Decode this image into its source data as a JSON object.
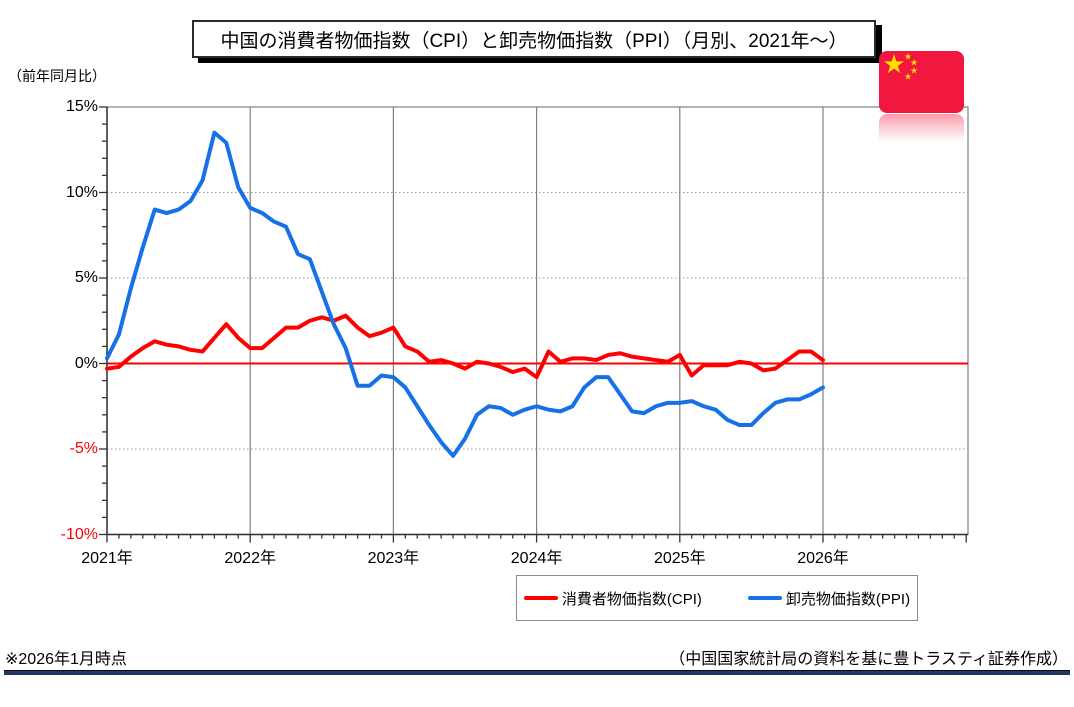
{
  "title": "中国の消費者物価指数（CPI）と卸売物価指数（PPI）（月別、2021年～）",
  "y_axis_unit_label": "（前年同月比）",
  "legend": [
    {
      "label": "消費者物価指数(CPI)",
      "color": "#FF0000"
    },
    {
      "label": "卸売物価指数(PPI)",
      "color": "#1670E8"
    }
  ],
  "footer": {
    "left_note": "※2026年1月時点",
    "right_source": "（中国国家統計局の資料を基に豊トラスティ証券作成）"
  },
  "flag": {
    "name": "china-flag",
    "field_color": "#F1173F",
    "star_color": "#FFDE00",
    "big_star": "★",
    "small_star": "★"
  },
  "chart_data": {
    "type": "line",
    "title": "中国の消費者物価指数（CPI）と卸売物価指数（PPI）（月別、2021年～）",
    "xlabel": "",
    "ylabel": "（前年同月比）",
    "x_range": [
      "2021-01",
      "2026-01"
    ],
    "x_tick_labels": [
      "2021年",
      "2022年",
      "2023年",
      "2024年",
      "2025年",
      "2026年"
    ],
    "y_tick_labels": [
      "15%",
      "10%",
      "5%",
      "0%",
      "-5%",
      "-10%"
    ],
    "y_tick_colors": [
      "#000000",
      "#000000",
      "#000000",
      "#000000",
      "#FF0000",
      "#FF0000"
    ],
    "ylim": [
      -10,
      15
    ],
    "grid": "dotted horizontal at 10,5,-5; solid gray vertical at year starts",
    "zero_line_color": "#FF0000",
    "legend_position": "bottom",
    "series": [
      {
        "name": "消費者物価指数(CPI)",
        "color": "#FF0000",
        "values": [
          -0.3,
          -0.2,
          0.4,
          0.9,
          1.3,
          1.1,
          1.0,
          0.8,
          0.7,
          1.5,
          2.3,
          1.5,
          0.9,
          0.9,
          1.5,
          2.1,
          2.1,
          2.5,
          2.7,
          2.5,
          2.8,
          2.1,
          1.6,
          1.8,
          2.1,
          1.0,
          0.7,
          0.1,
          0.2,
          0.0,
          -0.3,
          0.1,
          0.0,
          -0.2,
          -0.5,
          -0.3,
          -0.8,
          0.7,
          0.1,
          0.3,
          0.3,
          0.2,
          0.5,
          0.6,
          0.4,
          0.3,
          0.2,
          0.1,
          0.5,
          -0.7,
          -0.1,
          -0.1,
          -0.1,
          0.1,
          0.0,
          -0.4,
          -0.3,
          0.2,
          0.7,
          0.7,
          0.2
        ]
      },
      {
        "name": "卸売物価指数(PPI)",
        "color": "#1670E8",
        "values": [
          0.3,
          1.7,
          4.4,
          6.8,
          9.0,
          8.8,
          9.0,
          9.5,
          10.7,
          13.5,
          12.9,
          10.3,
          9.1,
          8.8,
          8.3,
          8.0,
          6.4,
          6.1,
          4.2,
          2.3,
          0.9,
          -1.3,
          -1.3,
          -0.7,
          -0.8,
          -1.4,
          -2.5,
          -3.6,
          -4.6,
          -5.4,
          -4.4,
          -3.0,
          -2.5,
          -2.6,
          -3.0,
          -2.7,
          -2.5,
          -2.7,
          -2.8,
          -2.5,
          -1.4,
          -0.8,
          -0.8,
          -1.8,
          -2.8,
          -2.9,
          -2.5,
          -2.3,
          -2.3,
          -2.2,
          -2.5,
          -2.7,
          -3.3,
          -3.6,
          -3.6,
          -2.9,
          -2.3,
          -2.1,
          -2.1,
          -1.8,
          -1.4
        ]
      }
    ]
  }
}
